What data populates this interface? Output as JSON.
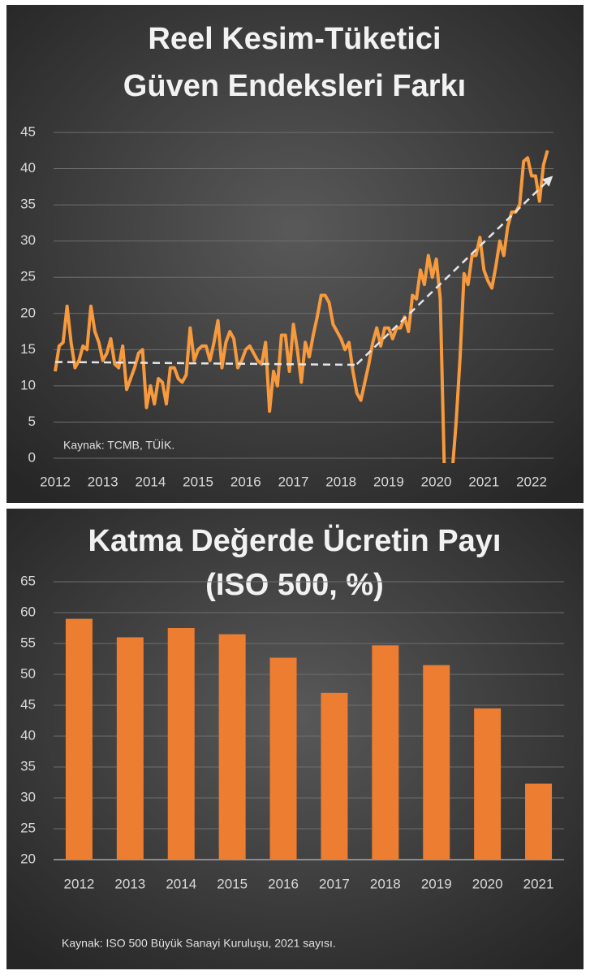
{
  "chart_data": [
    {
      "type": "line",
      "title": [
        "Reel Kesim-Tüketici",
        "Güven Endeksleri Farkı"
      ],
      "source": "Kaynak: TCMB, TÜİK.",
      "categories": [
        "2012",
        null,
        null,
        null,
        null,
        null,
        null,
        null,
        null,
        null,
        null,
        null,
        "2013",
        null,
        null,
        null,
        null,
        null,
        null,
        null,
        null,
        null,
        null,
        null,
        "2014",
        null,
        null,
        null,
        null,
        null,
        null,
        null,
        null,
        null,
        null,
        null,
        "2015",
        null,
        null,
        null,
        null,
        null,
        null,
        null,
        null,
        null,
        null,
        null,
        "2016",
        null,
        null,
        null,
        null,
        null,
        null,
        null,
        null,
        null,
        null,
        null,
        "2017",
        null,
        null,
        null,
        null,
        null,
        null,
        null,
        null,
        null,
        null,
        null,
        "2018",
        null,
        null,
        null,
        null,
        null,
        null,
        null,
        null,
        null,
        null,
        null,
        "2019",
        null,
        null,
        null,
        null,
        null,
        null,
        null,
        null,
        null,
        null,
        null,
        "2020",
        null,
        null,
        null,
        null,
        null,
        null,
        null,
        null,
        null,
        null,
        null,
        "2021",
        null,
        null,
        null,
        null,
        null,
        null,
        null,
        null,
        null,
        null,
        null,
        "2022",
        null,
        null,
        null,
        null
      ],
      "series": [
        {
          "color": "#f79a3e",
          "values": [
            12,
            15.5,
            16,
            21,
            16,
            12.5,
            13.5,
            15.5,
            15,
            21,
            17.5,
            16,
            13.5,
            14.5,
            16.5,
            13,
            12.5,
            15.5,
            9.5,
            11,
            12.5,
            14.5,
            15,
            7,
            10,
            7.5,
            11,
            10.5,
            7.5,
            12.5,
            12.5,
            11,
            10.5,
            11.5,
            18,
            13.5,
            15,
            15.5,
            15.5,
            13.5,
            16,
            19,
            12.5,
            16,
            17.5,
            16.5,
            12.5,
            13.5,
            15,
            15.5,
            14.5,
            13.5,
            13,
            16,
            6.5,
            12,
            10,
            17,
            17,
            12,
            18.5,
            15,
            10.5,
            16,
            14,
            17,
            19.5,
            22.5,
            22.5,
            21.5,
            18.5,
            17.5,
            16.5,
            15,
            16,
            12,
            9,
            8,
            10.5,
            13,
            16,
            18,
            15.5,
            18,
            18,
            16.5,
            18,
            18,
            19.5,
            17.5,
            22.5,
            22,
            26,
            24,
            28,
            25,
            27.5,
            22,
            -1,
            -2,
            -2,
            5,
            14,
            25.5,
            24,
            28,
            28,
            30.5,
            26,
            24.5,
            23.5,
            26.5,
            30,
            28,
            32,
            34,
            34,
            35,
            41,
            41.5,
            39,
            39,
            35.5,
            40.5,
            42.5
          ]
        }
      ],
      "trend_lines": [
        {
          "color": "#e6e6e6",
          "points": [
            [
              0,
              13.3
            ],
            [
              76,
              12.9
            ]
          ]
        },
        {
          "color": "#e6e6e6",
          "arrow": true,
          "points": [
            [
              76,
              13
            ],
            [
              125,
              38.8
            ]
          ]
        }
      ],
      "ylim": [
        0,
        45
      ],
      "yticks": [
        0,
        5,
        10,
        15,
        20,
        25,
        30,
        35,
        40,
        45
      ],
      "grid": true
    },
    {
      "type": "bar",
      "title": [
        "Katma Değerde Ücretin Payı",
        "(ISO 500, %)"
      ],
      "source": "Kaynak: ISO 500 Büyük Sanayi Kuruluşu, 2021 sayısı.",
      "categories": [
        "2012",
        "2013",
        "2014",
        "2015",
        "2016",
        "2017",
        "2018",
        "2019",
        "2020",
        "2021"
      ],
      "values": [
        59,
        56,
        57.5,
        56.5,
        52.7,
        47,
        54.7,
        51.5,
        44.5,
        32.3
      ],
      "color": "#ed7d31",
      "ylim": [
        20,
        65
      ],
      "yticks": [
        20,
        25,
        30,
        35,
        40,
        45,
        50,
        55,
        60,
        65
      ],
      "grid": true
    }
  ]
}
